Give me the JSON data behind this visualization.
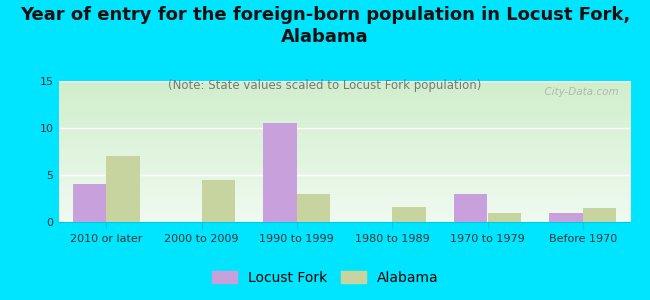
{
  "title": "Year of entry for the foreign-born population in Locust Fork,\nAlabama",
  "subtitle": "(Note: State values scaled to Locust Fork population)",
  "categories": [
    "2010 or later",
    "2000 to 2009",
    "1990 to 1999",
    "1980 to 1989",
    "1970 to 1979",
    "Before 1970"
  ],
  "locust_fork": [
    4.0,
    0.0,
    10.5,
    0.0,
    3.0,
    1.0
  ],
  "alabama": [
    7.0,
    4.5,
    3.0,
    1.6,
    1.0,
    1.5
  ],
  "locust_fork_color": "#c8a0dc",
  "alabama_color": "#c8d4a0",
  "background_color": "#00e5ff",
  "grad_top": "#f0faf0",
  "grad_bottom": "#d0eecc",
  "ylim": [
    0,
    15
  ],
  "yticks": [
    0,
    5,
    10,
    15
  ],
  "bar_width": 0.35,
  "watermark": "  City-Data.com",
  "title_fontsize": 13,
  "subtitle_fontsize": 8.5,
  "tick_fontsize": 8,
  "legend_fontsize": 10
}
